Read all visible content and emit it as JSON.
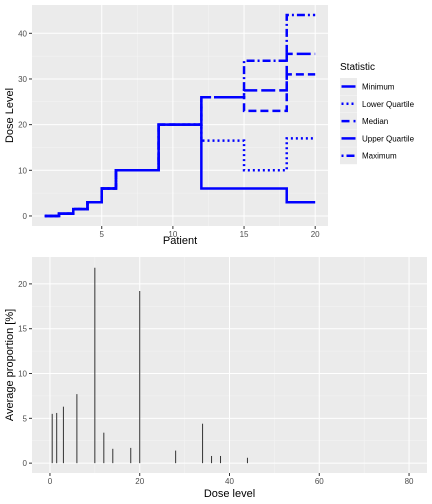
{
  "chart_data": [
    {
      "type": "line",
      "subtype": "step",
      "xlabel": "Patient",
      "ylabel": "Dose Level",
      "xlim": [
        0.1,
        20.9
      ],
      "ylim": [
        -2.2,
        46.2
      ],
      "xticks": [
        5,
        10,
        15,
        20
      ],
      "yticks": [
        0,
        10,
        20,
        30,
        40
      ],
      "grid": true,
      "color": "#0000ff",
      "legend": {
        "title": "Statistic",
        "placement": "right"
      },
      "series": [
        {
          "name": "Minimum",
          "linetype": "solid",
          "x": [
            1,
            2,
            3,
            4,
            5,
            6,
            7,
            8,
            9,
            10,
            11,
            12,
            13,
            14,
            15,
            16,
            17,
            18,
            19,
            20
          ],
          "y": [
            0,
            0.5,
            1.5,
            3,
            6,
            10,
            10,
            10,
            20,
            20,
            20,
            6,
            6,
            6,
            6,
            6,
            6,
            3,
            3,
            3
          ]
        },
        {
          "name": "Lower Quartile",
          "linetype": "dotted",
          "x": [
            1,
            2,
            3,
            4,
            5,
            6,
            7,
            8,
            9,
            10,
            11,
            12,
            13,
            14,
            15,
            16,
            17,
            18,
            19,
            20
          ],
          "y": [
            0,
            0.5,
            1.5,
            3,
            6,
            10,
            10,
            10,
            20,
            20,
            20,
            16.5,
            16.5,
            16.5,
            10,
            10,
            10,
            17,
            17,
            17
          ]
        },
        {
          "name": "Median",
          "linetype": "dashed",
          "x": [
            1,
            2,
            3,
            4,
            5,
            6,
            7,
            8,
            9,
            10,
            11,
            12,
            13,
            14,
            15,
            16,
            17,
            18,
            19,
            20
          ],
          "y": [
            0,
            0.5,
            1.5,
            3,
            6,
            10,
            10,
            10,
            20,
            20,
            20,
            26,
            26,
            26,
            23,
            23,
            23,
            31,
            31,
            31
          ]
        },
        {
          "name": "Upper Quartile",
          "linetype": "longdash",
          "x": [
            1,
            2,
            3,
            4,
            5,
            6,
            7,
            8,
            9,
            10,
            11,
            12,
            13,
            14,
            15,
            16,
            17,
            18,
            19,
            20
          ],
          "y": [
            0,
            0.5,
            1.5,
            3,
            6,
            10,
            10,
            10,
            20,
            20,
            20,
            26,
            26,
            26,
            27.5,
            27.5,
            27.5,
            35.5,
            35.5,
            35.5
          ]
        },
        {
          "name": "Maximum",
          "linetype": "dotdash",
          "x": [
            1,
            2,
            3,
            4,
            5,
            6,
            7,
            8,
            9,
            10,
            11,
            12,
            13,
            14,
            15,
            16,
            17,
            18,
            19,
            20
          ],
          "y": [
            0,
            0.5,
            1.5,
            3,
            6,
            10,
            10,
            10,
            20,
            20,
            20,
            26,
            26,
            26,
            34,
            34,
            34,
            44,
            44,
            44
          ]
        }
      ]
    },
    {
      "type": "bar",
      "xlabel": "Dose level",
      "ylabel": "Average proportion [%]",
      "xlim": [
        -4,
        84
      ],
      "ylim": [
        -1.1,
        23.0
      ],
      "xticks": [
        0,
        20,
        40,
        60,
        80
      ],
      "yticks": [
        0,
        5,
        10,
        15,
        20
      ],
      "grid": true,
      "x": [
        0.5,
        1.5,
        3,
        6,
        10,
        12,
        14,
        18,
        20,
        28,
        34,
        36,
        38,
        44
      ],
      "values": [
        5.5,
        5.6,
        6.3,
        7.7,
        21.8,
        3.4,
        1.6,
        1.7,
        19.2,
        1.4,
        4.4,
        0.8,
        0.8,
        0.6
      ]
    }
  ]
}
